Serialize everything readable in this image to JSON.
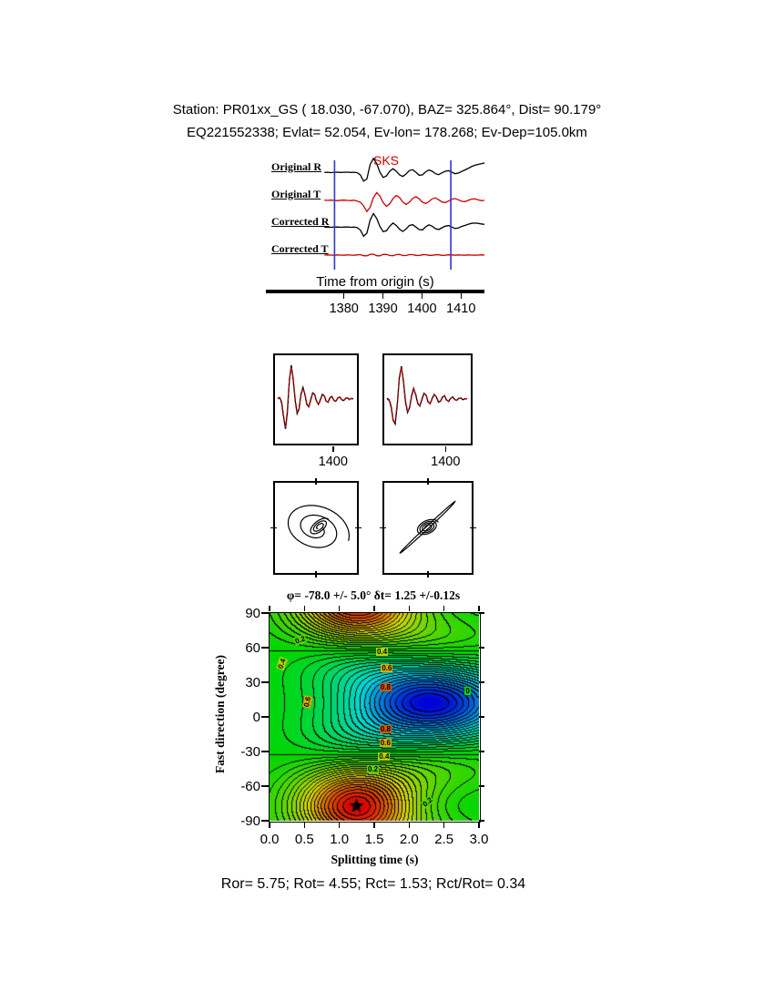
{
  "header": {
    "line1": "Station: PR01xx_GS (  18.030,  -67.070), BAZ=  325.864°, Dist=   90.179°",
    "line2": "EQ221552338; Evlat=  52.054, Ev-lon= 178.268; Ev-Dep=105.0km"
  },
  "footer": {
    "stats": "Ror= 5.75; Rot= 4.55; Rct= 1.53; Rct/Rot= 0.34"
  },
  "chart_data": [
    {
      "id": "waveforms",
      "type": "line",
      "xlabel": "Time from origin (s)",
      "phase_label": "SKS",
      "axis_range": [
        1360,
        1416
      ],
      "trace_range": [
        1375,
        1416
      ],
      "xticks": [
        1380,
        1390,
        1400,
        1410
      ],
      "xtick_labels": [
        "1380",
        "1390",
        "1400",
        "1410"
      ],
      "window_markers": [
        1377.6,
        1407.4
      ],
      "marker_color": "#3333cc",
      "series": [
        {
          "name": "Original R",
          "color": "#000000",
          "values": [
            0.04,
            0.05,
            0.03,
            0.05,
            0.06,
            0.04,
            0.05,
            0.06,
            0.04,
            0.05,
            0.03,
            -0.12,
            -0.52,
            -0.38,
            0.55,
            0.95,
            0.62,
            0.05,
            -0.28,
            -0.18,
            0.12,
            0.28,
            0.12,
            -0.12,
            -0.22,
            -0.06,
            0.16,
            0.22,
            0.06,
            -0.14,
            -0.12,
            0.08,
            0.2,
            0.12,
            -0.04,
            -0.1,
            0.02,
            0.12,
            0.16,
            0.06,
            -0.04,
            0.0,
            0.1,
            0.2,
            0.3,
            0.42,
            0.5,
            0.55,
            0.6,
            0.65
          ]
        },
        {
          "name": "Original T",
          "color": "#cc0000",
          "values": [
            0.01,
            0.0,
            0.02,
            0.0,
            -0.02,
            0.01,
            0.02,
            0.0,
            -0.01,
            0.01,
            -0.04,
            -0.12,
            -0.35,
            -0.72,
            -0.45,
            0.18,
            0.5,
            0.28,
            -0.15,
            -0.38,
            -0.22,
            0.12,
            0.32,
            0.18,
            -0.1,
            -0.26,
            -0.12,
            0.12,
            0.24,
            0.1,
            -0.12,
            -0.2,
            -0.08,
            0.1,
            0.16,
            0.04,
            -0.1,
            -0.14,
            -0.04,
            0.08,
            0.12,
            0.04,
            -0.06,
            -0.08,
            0.0,
            0.08,
            0.1,
            0.04,
            -0.02,
            0.0
          ]
        },
        {
          "name": "Corrected R",
          "color": "#000000",
          "values": [
            0.03,
            0.04,
            0.03,
            0.04,
            0.05,
            0.03,
            0.04,
            0.05,
            0.03,
            0.04,
            0.02,
            -0.15,
            -0.55,
            -0.35,
            0.5,
            0.92,
            0.6,
            0.08,
            -0.25,
            -0.2,
            0.1,
            0.3,
            0.15,
            -0.1,
            -0.24,
            -0.08,
            0.14,
            0.2,
            0.05,
            -0.12,
            -0.14,
            0.06,
            0.18,
            0.1,
            -0.06,
            -0.12,
            0.0,
            0.1,
            0.14,
            0.05,
            -0.05,
            -0.02,
            0.08,
            0.15,
            0.22,
            0.28,
            0.3,
            0.28,
            0.25,
            0.22
          ]
        },
        {
          "name": "Corrected T",
          "color": "#cc0000",
          "values": [
            0.0,
            0.01,
            0.0,
            -0.01,
            0.01,
            0.0,
            -0.01,
            0.01,
            0.0,
            -0.01,
            0.01,
            0.03,
            -0.04,
            -0.05,
            0.04,
            0.06,
            -0.04,
            -0.05,
            0.04,
            0.04,
            -0.03,
            -0.04,
            0.03,
            0.04,
            -0.03,
            -0.03,
            0.03,
            0.03,
            -0.02,
            -0.03,
            0.02,
            0.03,
            -0.02,
            -0.02,
            0.02,
            0.02,
            -0.02,
            -0.01,
            0.02,
            0.01,
            -0.01,
            0.01,
            0.0,
            -0.01,
            0.01,
            0.0,
            -0.01,
            0.0,
            0.01,
            0.0
          ]
        }
      ]
    },
    {
      "id": "window-comparison",
      "type": "line",
      "boxes": [
        {
          "tick_label": "1400",
          "tick_frac": 0.7,
          "series": [
            {
              "name": "component-1",
              "color": "#000000",
              "dash": false,
              "values": [
                0.02,
                0.04,
                -0.08,
                -0.45,
                -0.78,
                -0.35,
                0.5,
                0.88,
                0.5,
                -0.05,
                -0.38,
                -0.25,
                0.12,
                0.3,
                0.12,
                -0.14,
                -0.2,
                -0.02,
                0.16,
                0.12,
                -0.06,
                -0.14,
                -0.02,
                0.12,
                0.08,
                -0.06,
                -0.08,
                0.04,
                0.06,
                -0.04,
                -0.06,
                0.03,
                0.05,
                -0.02,
                -0.04,
                0.02,
                0.03,
                -0.02,
                0.02,
                0.0
              ]
            },
            {
              "name": "component-2",
              "color": "#cc0000",
              "dash": true,
              "values": [
                0.0,
                0.03,
                -0.12,
                -0.5,
                -0.74,
                -0.28,
                0.46,
                0.84,
                0.55,
                0.0,
                -0.34,
                -0.28,
                0.08,
                0.28,
                0.15,
                -0.11,
                -0.21,
                -0.05,
                0.14,
                0.14,
                -0.04,
                -0.15,
                -0.04,
                0.1,
                0.1,
                -0.05,
                -0.09,
                0.02,
                0.07,
                -0.03,
                -0.07,
                0.02,
                0.06,
                -0.01,
                -0.05,
                0.01,
                0.03,
                -0.01,
                0.01,
                0.0
              ]
            }
          ]
        },
        {
          "tick_label": "1400",
          "tick_frac": 0.7,
          "series": [
            {
              "name": "component-1",
              "color": "#000000",
              "dash": false,
              "values": [
                0.02,
                -0.02,
                -0.18,
                -0.55,
                -0.65,
                -0.15,
                0.55,
                0.85,
                0.45,
                -0.08,
                -0.35,
                -0.22,
                0.1,
                0.28,
                0.1,
                -0.12,
                -0.18,
                0.0,
                0.15,
                0.1,
                -0.08,
                -0.12,
                0.02,
                0.12,
                0.05,
                -0.08,
                -0.06,
                0.05,
                0.08,
                -0.03,
                -0.06,
                0.02,
                0.05,
                -0.02,
                -0.03,
                0.02,
                0.02,
                -0.02,
                0.01,
                0.0
              ]
            },
            {
              "name": "component-2",
              "color": "#cc0000",
              "dash": true,
              "values": [
                0.0,
                -0.04,
                -0.22,
                -0.58,
                -0.6,
                -0.1,
                0.5,
                0.82,
                0.5,
                -0.03,
                -0.32,
                -0.25,
                0.06,
                0.26,
                0.13,
                -0.09,
                -0.19,
                -0.03,
                0.13,
                0.12,
                -0.06,
                -0.13,
                0.0,
                0.1,
                0.07,
                -0.06,
                -0.07,
                0.03,
                0.09,
                -0.02,
                -0.07,
                0.01,
                0.06,
                -0.01,
                -0.04,
                0.01,
                0.03,
                -0.01,
                0.0,
                0.01
              ]
            }
          ]
        }
      ]
    },
    {
      "id": "particle-motion",
      "type": "scatter",
      "panels": [
        {
          "name": "original",
          "components": [
            {
              "turns": 2.1,
              "r0": 0.95,
              "r1": 0.22,
              "ratio": 0.72,
              "tilt": -20,
              "cx": 0.0,
              "cy": -0.04
            },
            {
              "turns": 2.6,
              "r0": 0.32,
              "r1": 0.07,
              "ratio": 0.5,
              "tilt": 38,
              "cx": 0.1,
              "cy": 0.02
            }
          ]
        },
        {
          "name": "corrected",
          "components": [
            {
              "turns": 1.0,
              "r0": 0.97,
              "r1": 0.93,
              "ratio": 0.035,
              "tilt": 43,
              "cx": 0.0,
              "cy": 0.0
            },
            {
              "turns": 3.5,
              "r0": 0.3,
              "r1": 0.07,
              "ratio": 0.6,
              "tilt": 25,
              "cx": 0.0,
              "cy": 0.0
            }
          ]
        }
      ]
    },
    {
      "id": "splitting-misfit",
      "type": "heatmap",
      "title": "φ= -78.0 +/- 5.0° δt= 1.25 +/-0.12s",
      "xlabel": "Splitting time (s)",
      "ylabel": "Fast direction (degree)",
      "xlim": [
        0,
        3
      ],
      "ylim": [
        -90,
        90
      ],
      "xtick_labels": [
        "0.0",
        "0.5",
        "1.0",
        "1.5",
        "2.0",
        "2.5",
        "3.0"
      ],
      "ytick_labels": [
        "90",
        "60",
        "30",
        "0",
        "-30",
        "-60",
        "-90"
      ],
      "best_fit": {
        "phi_deg": -78.0,
        "phi_err_deg": 5.0,
        "dt_s": 1.25,
        "dt_err_s": 0.12
      },
      "star": {
        "dt": 1.25,
        "phi": -78
      },
      "model": {
        "phi0": -78,
        "dt_pos": 1.25,
        "sigma_pos": 0.6,
        "dt_neg": 2.3,
        "sigma_neg": 0.85,
        "contour_step": 0.05
      },
      "contour_labels": [
        {
          "text": "0.2",
          "dt": 0.46,
          "phi": 66,
          "rot": -20
        },
        {
          "text": "0.4",
          "dt": 0.2,
          "phi": 46,
          "rot": -70
        },
        {
          "text": "0.4",
          "dt": 1.63,
          "phi": 56,
          "rot": 0
        },
        {
          "text": "0.6",
          "dt": 1.7,
          "phi": 42,
          "rot": 0
        },
        {
          "text": "0.8",
          "dt": 1.68,
          "phi": 25,
          "rot": 0
        },
        {
          "text": "0",
          "dt": 2.9,
          "phi": 22,
          "rot": 0
        },
        {
          "text": "0.6",
          "dt": 0.56,
          "phi": 13,
          "rot": -78
        },
        {
          "text": "0.8",
          "dt": 1.68,
          "phi": -11,
          "rot": 0
        },
        {
          "text": "0.6",
          "dt": 1.68,
          "phi": -23,
          "rot": 0
        },
        {
          "text": "0.4",
          "dt": 1.66,
          "phi": -35,
          "rot": 0
        },
        {
          "text": "0.2",
          "dt": 1.5,
          "phi": -46,
          "rot": 0
        },
        {
          "text": "0.2",
          "dt": 2.28,
          "phi": -74,
          "rot": -40
        }
      ]
    }
  ]
}
